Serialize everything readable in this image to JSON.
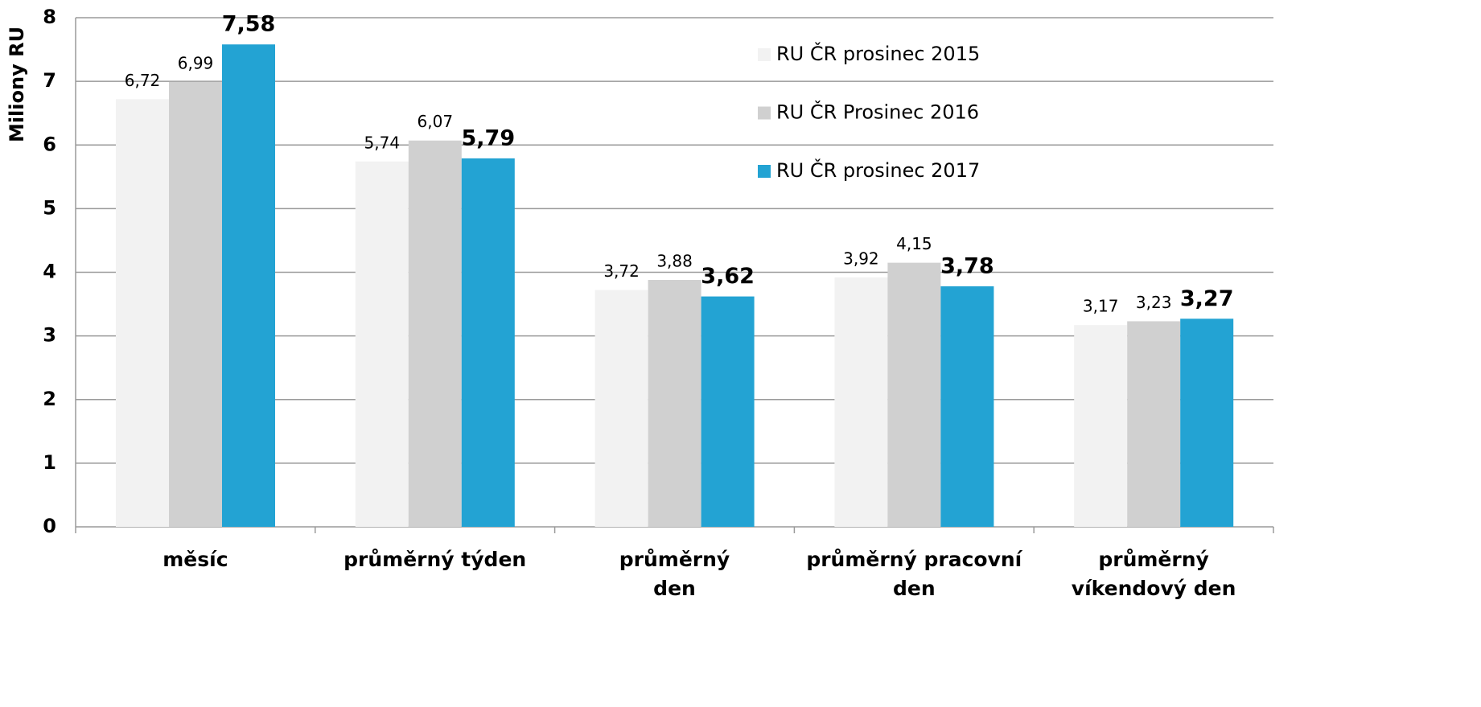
{
  "chart_data": {
    "type": "bar",
    "y_label": "Miliony RU",
    "categories": [
      "měsíc",
      "průměrný týden",
      "průměrný\nden",
      "průměrný pracovní\nden",
      "průměrný\nvíkendový den"
    ],
    "series": [
      {
        "name": "RU ČR prosinec 2015",
        "color": "#f2f2f2",
        "values": [
          6.72,
          5.74,
          3.72,
          3.92,
          3.17
        ],
        "value_labels": [
          "6,72",
          "5,74",
          "3,72",
          "3,92",
          "3,17"
        ]
      },
      {
        "name": "RU ČR Prosinec 2016",
        "color": "#d0d0d0",
        "values": [
          6.99,
          6.07,
          3.88,
          4.15,
          3.23
        ],
        "value_labels": [
          "6,99",
          "6,07",
          "3,88",
          "4,15",
          "3,23"
        ]
      },
      {
        "name": "RU ČR prosinec 2017",
        "color": "#23a3d3",
        "values": [
          7.58,
          5.79,
          3.62,
          3.78,
          3.27
        ],
        "value_labels": [
          "7,58",
          "5,79",
          "3,62",
          "3,78",
          "3,27"
        ]
      }
    ],
    "ylim": [
      0,
      8
    ],
    "yticks": [
      0,
      1,
      2,
      3,
      4,
      5,
      6,
      7,
      8
    ],
    "grid": true,
    "legend": "top-right"
  }
}
